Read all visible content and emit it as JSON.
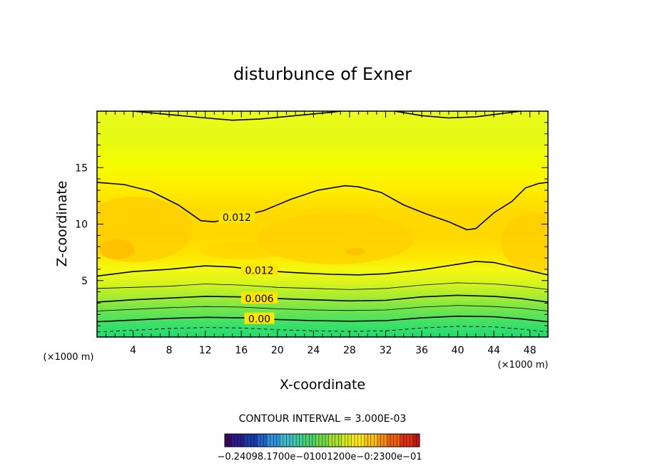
{
  "chart_data": {
    "type": "contour",
    "title": "disturbunce of Exner",
    "xlabel": "X-coordinate",
    "ylabel": "Z-coordinate",
    "x_unit": "(×1000 m)",
    "y_unit": "(×1000 m)",
    "xlim": [
      0,
      50
    ],
    "ylim": [
      0,
      20
    ],
    "x_ticks": [
      4,
      8,
      12,
      16,
      20,
      24,
      28,
      32,
      36,
      40,
      44,
      48
    ],
    "y_ticks": [
      5,
      10,
      15
    ],
    "contour_interval": "CONTOUR INTERVAL = 3.000E-03",
    "contour_labels": [
      {
        "text": "0.012",
        "x": 15.5,
        "y": 10.6
      },
      {
        "text": "0.012",
        "x": 18,
        "y": 5.9
      },
      {
        "text": "0.006",
        "x": 18,
        "y": 3.4
      },
      {
        "text": "0.00",
        "x": 18,
        "y": 1.6
      }
    ],
    "contours": [
      {
        "level": "0.012",
        "style": "bold",
        "points": [
          [
            0,
            13.7
          ],
          [
            3,
            13.5
          ],
          [
            6,
            12.9
          ],
          [
            9,
            11.7
          ],
          [
            11.5,
            10.3
          ],
          [
            13,
            10.2
          ],
          [
            15.5,
            10.6
          ],
          [
            18.5,
            11.2
          ],
          [
            21.5,
            12.2
          ],
          [
            24.5,
            13.0
          ],
          [
            27.5,
            13.4
          ],
          [
            29,
            13.3
          ],
          [
            31.5,
            12.8
          ],
          [
            34,
            11.7
          ],
          [
            36.5,
            10.9
          ],
          [
            39,
            10.2
          ],
          [
            41,
            9.5
          ],
          [
            42,
            9.6
          ],
          [
            44,
            11.0
          ],
          [
            46,
            12.0
          ],
          [
            47.5,
            13.2
          ],
          [
            49,
            13.6
          ],
          [
            50,
            13.7
          ]
        ]
      },
      {
        "level": "0.012",
        "style": "bold",
        "points": [
          [
            0,
            5.4
          ],
          [
            4,
            5.8
          ],
          [
            8,
            6.0
          ],
          [
            12,
            6.3
          ],
          [
            15,
            6.2
          ],
          [
            18,
            5.9
          ],
          [
            22,
            5.7
          ],
          [
            26,
            5.55
          ],
          [
            29,
            5.5
          ],
          [
            32,
            5.6
          ],
          [
            36,
            5.95
          ],
          [
            40,
            6.45
          ],
          [
            42,
            6.7
          ],
          [
            44,
            6.6
          ],
          [
            47,
            6.05
          ],
          [
            50,
            5.5
          ]
        ]
      },
      {
        "level": "0.009",
        "style": "thin",
        "points": [
          [
            0,
            4.3
          ],
          [
            4,
            4.4
          ],
          [
            8,
            4.5
          ],
          [
            12,
            4.7
          ],
          [
            16,
            4.6
          ],
          [
            20,
            4.4
          ],
          [
            24,
            4.3
          ],
          [
            28,
            4.2
          ],
          [
            32,
            4.3
          ],
          [
            36,
            4.6
          ],
          [
            40,
            4.8
          ],
          [
            44,
            4.7
          ],
          [
            47,
            4.5
          ],
          [
            50,
            4.2
          ]
        ]
      },
      {
        "level": "0.006",
        "style": "bold",
        "points": [
          [
            0,
            3.1
          ],
          [
            4,
            3.3
          ],
          [
            8,
            3.45
          ],
          [
            12,
            3.6
          ],
          [
            16,
            3.55
          ],
          [
            20,
            3.4
          ],
          [
            24,
            3.3
          ],
          [
            28,
            3.2
          ],
          [
            32,
            3.25
          ],
          [
            36,
            3.55
          ],
          [
            40,
            3.7
          ],
          [
            44,
            3.6
          ],
          [
            47,
            3.4
          ],
          [
            50,
            3.1
          ]
        ]
      },
      {
        "level": "0.003",
        "style": "thin",
        "points": [
          [
            0,
            2.3
          ],
          [
            4,
            2.45
          ],
          [
            8,
            2.6
          ],
          [
            12,
            2.7
          ],
          [
            16,
            2.65
          ],
          [
            20,
            2.5
          ],
          [
            24,
            2.4
          ],
          [
            28,
            2.35
          ],
          [
            32,
            2.4
          ],
          [
            36,
            2.65
          ],
          [
            40,
            2.8
          ],
          [
            44,
            2.7
          ],
          [
            47,
            2.55
          ],
          [
            50,
            2.3
          ]
        ]
      },
      {
        "level": "0.000",
        "style": "bold",
        "points": [
          [
            0,
            1.35
          ],
          [
            4,
            1.5
          ],
          [
            8,
            1.65
          ],
          [
            12,
            1.75
          ],
          [
            16,
            1.7
          ],
          [
            20,
            1.55
          ],
          [
            24,
            1.45
          ],
          [
            28,
            1.4
          ],
          [
            32,
            1.45
          ],
          [
            36,
            1.7
          ],
          [
            40,
            1.85
          ],
          [
            44,
            1.8
          ],
          [
            47,
            1.6
          ],
          [
            50,
            1.35
          ]
        ]
      },
      {
        "level": "-0.003",
        "style": "dashed",
        "points": [
          [
            0,
            0.45
          ],
          [
            4,
            0.6
          ],
          [
            8,
            0.75
          ],
          [
            12,
            0.85
          ],
          [
            16,
            0.8
          ],
          [
            20,
            0.65
          ],
          [
            24,
            0.55
          ],
          [
            28,
            0.5
          ],
          [
            32,
            0.55
          ],
          [
            36,
            0.8
          ],
          [
            40,
            0.95
          ],
          [
            44,
            0.9
          ],
          [
            47,
            0.7
          ],
          [
            50,
            0.45
          ]
        ]
      },
      {
        "level": "top",
        "style": "bold",
        "points": [
          [
            4,
            20
          ],
          [
            8,
            19.7
          ],
          [
            12,
            19.4
          ],
          [
            15,
            19.2
          ],
          [
            18,
            19.3
          ],
          [
            22,
            19.6
          ],
          [
            26,
            19.9
          ],
          [
            27,
            20
          ]
        ]
      },
      {
        "level": "top",
        "style": "bold",
        "points": [
          [
            33,
            20
          ],
          [
            36,
            19.6
          ],
          [
            39,
            19.4
          ],
          [
            42,
            19.5
          ],
          [
            45,
            19.8
          ],
          [
            47,
            20
          ]
        ]
      }
    ],
    "colorbar": {
      "labels_text": "−0.24098.1700e−01001200e−0:2300e−01",
      "colors": [
        "#3a0a5e",
        "#2a1a8a",
        "#1a3aa8",
        "#2060c8",
        "#3090d8",
        "#40b8c8",
        "#40c8a0",
        "#48d070",
        "#70d848",
        "#a8e030",
        "#d8e820",
        "#f8e820",
        "#f8c018",
        "#f09010",
        "#e86010",
        "#d83010",
        "#c01818"
      ]
    },
    "fill_colors": {
      "bottom": "#22dc6e",
      "low": "#6ee048",
      "mid_low": "#c8f018",
      "yellow": "#ffff00",
      "core": "#ffd400",
      "upper": "#e8ff10"
    }
  }
}
